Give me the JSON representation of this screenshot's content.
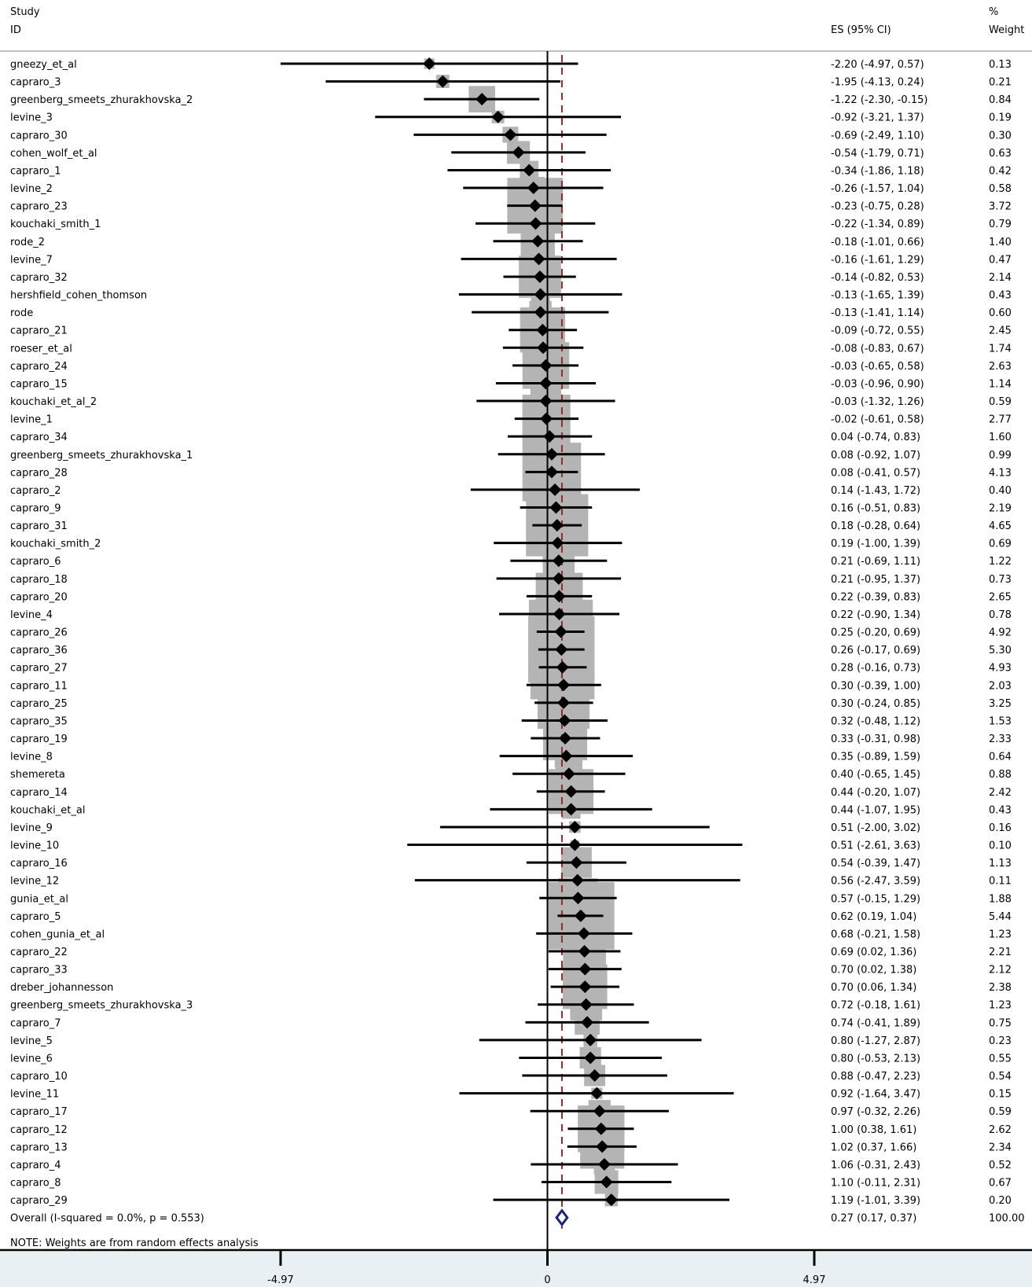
{
  "header": {
    "study_line1": "Study",
    "study_line2": "ID",
    "es_header": "ES (95% CI)",
    "weight_line1": "%",
    "weight_line2": "Weight"
  },
  "note": "NOTE: Weights are from random effects analysis",
  "chart_data": {
    "type": "forest",
    "x_axis": {
      "ticks": [
        -4.97,
        0,
        4.97
      ],
      "tick_labels": [
        "-4.97",
        "0",
        "4.97"
      ],
      "range": [
        -4.97,
        4.97
      ]
    },
    "colors": {
      "diamond": "#000000",
      "weight_box": "#b4b4b4",
      "overall_outline": "#1a237e",
      "reference_line": "#8b2c2c",
      "axis_band": "#e8f0f3"
    },
    "studies": [
      {
        "id": "gneezy_et_al",
        "es": -2.2,
        "lo": -4.97,
        "hi": 0.57,
        "ci_text": "-2.20 (-4.97, 0.57)",
        "weight": 0.13,
        "weight_text": "0.13"
      },
      {
        "id": "capraro_3",
        "es": -1.95,
        "lo": -4.13,
        "hi": 0.24,
        "ci_text": "-1.95 (-4.13, 0.24)",
        "weight": 0.21,
        "weight_text": "0.21"
      },
      {
        "id": "greenberg_smeets_zhurakhovska_2",
        "es": -1.22,
        "lo": -2.3,
        "hi": -0.15,
        "ci_text": "-1.22 (-2.30, -0.15)",
        "weight": 0.84,
        "weight_text": "0.84"
      },
      {
        "id": "levine_3",
        "es": -0.92,
        "lo": -3.21,
        "hi": 1.37,
        "ci_text": "-0.92 (-3.21, 1.37)",
        "weight": 0.19,
        "weight_text": "0.19"
      },
      {
        "id": "capraro_30",
        "es": -0.69,
        "lo": -2.49,
        "hi": 1.1,
        "ci_text": "-0.69 (-2.49, 1.10)",
        "weight": 0.3,
        "weight_text": "0.30"
      },
      {
        "id": "cohen_wolf_et_al",
        "es": -0.54,
        "lo": -1.79,
        "hi": 0.71,
        "ci_text": "-0.54 (-1.79, 0.71)",
        "weight": 0.63,
        "weight_text": "0.63"
      },
      {
        "id": "capraro_1",
        "es": -0.34,
        "lo": -1.86,
        "hi": 1.18,
        "ci_text": "-0.34 (-1.86, 1.18)",
        "weight": 0.42,
        "weight_text": "0.42"
      },
      {
        "id": "levine_2",
        "es": -0.26,
        "lo": -1.57,
        "hi": 1.04,
        "ci_text": "-0.26 (-1.57, 1.04)",
        "weight": 0.58,
        "weight_text": "0.58"
      },
      {
        "id": "capraro_23",
        "es": -0.23,
        "lo": -0.75,
        "hi": 0.28,
        "ci_text": "-0.23 (-0.75, 0.28)",
        "weight": 3.72,
        "weight_text": "3.72"
      },
      {
        "id": "kouchaki_smith_1",
        "es": -0.22,
        "lo": -1.34,
        "hi": 0.89,
        "ci_text": "-0.22 (-1.34, 0.89)",
        "weight": 0.79,
        "weight_text": "0.79"
      },
      {
        "id": "rode_2",
        "es": -0.18,
        "lo": -1.01,
        "hi": 0.66,
        "ci_text": "-0.18 (-1.01, 0.66)",
        "weight": 1.4,
        "weight_text": "1.40"
      },
      {
        "id": "levine_7",
        "es": -0.16,
        "lo": -1.61,
        "hi": 1.29,
        "ci_text": "-0.16 (-1.61, 1.29)",
        "weight": 0.47,
        "weight_text": "0.47"
      },
      {
        "id": "capraro_32",
        "es": -0.14,
        "lo": -0.82,
        "hi": 0.53,
        "ci_text": "-0.14 (-0.82, 0.53)",
        "weight": 2.14,
        "weight_text": "2.14"
      },
      {
        "id": "hershfield_cohen_thomson",
        "es": -0.13,
        "lo": -1.65,
        "hi": 1.39,
        "ci_text": "-0.13 (-1.65, 1.39)",
        "weight": 0.43,
        "weight_text": "0.43"
      },
      {
        "id": "rode",
        "es": -0.13,
        "lo": -1.41,
        "hi": 1.14,
        "ci_text": "-0.13 (-1.41, 1.14)",
        "weight": 0.6,
        "weight_text": "0.60"
      },
      {
        "id": "capraro_21",
        "es": -0.09,
        "lo": -0.72,
        "hi": 0.55,
        "ci_text": "-0.09 (-0.72, 0.55)",
        "weight": 2.45,
        "weight_text": "2.45"
      },
      {
        "id": "roeser_et_al",
        "es": -0.08,
        "lo": -0.83,
        "hi": 0.67,
        "ci_text": "-0.08 (-0.83, 0.67)",
        "weight": 1.74,
        "weight_text": "1.74"
      },
      {
        "id": "capraro_24",
        "es": -0.03,
        "lo": -0.65,
        "hi": 0.58,
        "ci_text": "-0.03 (-0.65, 0.58)",
        "weight": 2.63,
        "weight_text": "2.63"
      },
      {
        "id": "capraro_15",
        "es": -0.03,
        "lo": -0.96,
        "hi": 0.9,
        "ci_text": "-0.03 (-0.96, 0.90)",
        "weight": 1.14,
        "weight_text": "1.14"
      },
      {
        "id": "kouchaki_et_al_2",
        "es": -0.03,
        "lo": -1.32,
        "hi": 1.26,
        "ci_text": "-0.03 (-1.32, 1.26)",
        "weight": 0.59,
        "weight_text": "0.59"
      },
      {
        "id": "levine_1",
        "es": -0.02,
        "lo": -0.61,
        "hi": 0.58,
        "ci_text": "-0.02 (-0.61, 0.58)",
        "weight": 2.77,
        "weight_text": "2.77"
      },
      {
        "id": "capraro_34",
        "es": 0.04,
        "lo": -0.74,
        "hi": 0.83,
        "ci_text": "0.04 (-0.74, 0.83)",
        "weight": 1.6,
        "weight_text": "1.60"
      },
      {
        "id": "greenberg_smeets_zhurakhovska_1",
        "es": 0.08,
        "lo": -0.92,
        "hi": 1.07,
        "ci_text": "0.08 (-0.92, 1.07)",
        "weight": 0.99,
        "weight_text": "0.99"
      },
      {
        "id": "capraro_28",
        "es": 0.08,
        "lo": -0.41,
        "hi": 0.57,
        "ci_text": "0.08 (-0.41, 0.57)",
        "weight": 4.13,
        "weight_text": "4.13"
      },
      {
        "id": "capraro_2",
        "es": 0.14,
        "lo": -1.43,
        "hi": 1.72,
        "ci_text": "0.14 (-1.43, 1.72)",
        "weight": 0.4,
        "weight_text": "0.40"
      },
      {
        "id": "capraro_9",
        "es": 0.16,
        "lo": -0.51,
        "hi": 0.83,
        "ci_text": "0.16 (-0.51, 0.83)",
        "weight": 2.19,
        "weight_text": "2.19"
      },
      {
        "id": "capraro_31",
        "es": 0.18,
        "lo": -0.28,
        "hi": 0.64,
        "ci_text": "0.18 (-0.28, 0.64)",
        "weight": 4.65,
        "weight_text": "4.65"
      },
      {
        "id": "kouchaki_smith_2",
        "es": 0.19,
        "lo": -1.0,
        "hi": 1.39,
        "ci_text": "0.19 (-1.00, 1.39)",
        "weight": 0.69,
        "weight_text": "0.69"
      },
      {
        "id": "capraro_6",
        "es": 0.21,
        "lo": -0.69,
        "hi": 1.11,
        "ci_text": "0.21 (-0.69, 1.11)",
        "weight": 1.22,
        "weight_text": "1.22"
      },
      {
        "id": "capraro_18",
        "es": 0.21,
        "lo": -0.95,
        "hi": 1.37,
        "ci_text": "0.21 (-0.95, 1.37)",
        "weight": 0.73,
        "weight_text": "0.73"
      },
      {
        "id": "capraro_20",
        "es": 0.22,
        "lo": -0.39,
        "hi": 0.83,
        "ci_text": "0.22 (-0.39, 0.83)",
        "weight": 2.65,
        "weight_text": "2.65"
      },
      {
        "id": "levine_4",
        "es": 0.22,
        "lo": -0.9,
        "hi": 1.34,
        "ci_text": "0.22 (-0.90, 1.34)",
        "weight": 0.78,
        "weight_text": "0.78"
      },
      {
        "id": "capraro_26",
        "es": 0.25,
        "lo": -0.2,
        "hi": 0.69,
        "ci_text": "0.25 (-0.20, 0.69)",
        "weight": 4.92,
        "weight_text": "4.92"
      },
      {
        "id": "capraro_36",
        "es": 0.26,
        "lo": -0.17,
        "hi": 0.69,
        "ci_text": "0.26 (-0.17, 0.69)",
        "weight": 5.3,
        "weight_text": "5.30"
      },
      {
        "id": "capraro_27",
        "es": 0.28,
        "lo": -0.16,
        "hi": 0.73,
        "ci_text": "0.28 (-0.16, 0.73)",
        "weight": 4.93,
        "weight_text": "4.93"
      },
      {
        "id": "capraro_11",
        "es": 0.3,
        "lo": -0.39,
        "hi": 1.0,
        "ci_text": "0.30 (-0.39, 1.00)",
        "weight": 2.03,
        "weight_text": "2.03"
      },
      {
        "id": "capraro_25",
        "es": 0.3,
        "lo": -0.24,
        "hi": 0.85,
        "ci_text": "0.30 (-0.24, 0.85)",
        "weight": 3.25,
        "weight_text": "3.25"
      },
      {
        "id": "capraro_35",
        "es": 0.32,
        "lo": -0.48,
        "hi": 1.12,
        "ci_text": "0.32 (-0.48, 1.12)",
        "weight": 1.53,
        "weight_text": "1.53"
      },
      {
        "id": "capraro_19",
        "es": 0.33,
        "lo": -0.31,
        "hi": 0.98,
        "ci_text": "0.33 (-0.31, 0.98)",
        "weight": 2.33,
        "weight_text": "2.33"
      },
      {
        "id": "levine_8",
        "es": 0.35,
        "lo": -0.89,
        "hi": 1.59,
        "ci_text": "0.35 (-0.89, 1.59)",
        "weight": 0.64,
        "weight_text": "0.64"
      },
      {
        "id": "shemereta",
        "es": 0.4,
        "lo": -0.65,
        "hi": 1.45,
        "ci_text": "0.40 (-0.65, 1.45)",
        "weight": 0.88,
        "weight_text": "0.88"
      },
      {
        "id": "capraro_14",
        "es": 0.44,
        "lo": -0.2,
        "hi": 1.07,
        "ci_text": "0.44 (-0.20, 1.07)",
        "weight": 2.42,
        "weight_text": "2.42"
      },
      {
        "id": "kouchaki_et_al",
        "es": 0.44,
        "lo": -1.07,
        "hi": 1.95,
        "ci_text": "0.44 (-1.07, 1.95)",
        "weight": 0.43,
        "weight_text": "0.43"
      },
      {
        "id": "levine_9",
        "es": 0.51,
        "lo": -2.0,
        "hi": 3.02,
        "ci_text": "0.51 (-2.00, 3.02)",
        "weight": 0.16,
        "weight_text": "0.16"
      },
      {
        "id": "levine_10",
        "es": 0.51,
        "lo": -2.61,
        "hi": 3.63,
        "ci_text": "0.51 (-2.61, 3.63)",
        "weight": 0.1,
        "weight_text": "0.10"
      },
      {
        "id": "capraro_16",
        "es": 0.54,
        "lo": -0.39,
        "hi": 1.47,
        "ci_text": "0.54 (-0.39, 1.47)",
        "weight": 1.13,
        "weight_text": "1.13"
      },
      {
        "id": "levine_12",
        "es": 0.56,
        "lo": -2.47,
        "hi": 3.59,
        "ci_text": "0.56 (-2.47, 3.59)",
        "weight": 0.11,
        "weight_text": "0.11"
      },
      {
        "id": "gunia_et_al",
        "es": 0.57,
        "lo": -0.15,
        "hi": 1.29,
        "ci_text": "0.57 (-0.15, 1.29)",
        "weight": 1.88,
        "weight_text": "1.88"
      },
      {
        "id": "capraro_5",
        "es": 0.62,
        "lo": 0.19,
        "hi": 1.04,
        "ci_text": "0.62 (0.19, 1.04)",
        "weight": 5.44,
        "weight_text": "5.44"
      },
      {
        "id": "cohen_gunia_et_al",
        "es": 0.68,
        "lo": -0.21,
        "hi": 1.58,
        "ci_text": "0.68 (-0.21, 1.58)",
        "weight": 1.23,
        "weight_text": "1.23"
      },
      {
        "id": "capraro_22",
        "es": 0.69,
        "lo": 0.02,
        "hi": 1.36,
        "ci_text": "0.69 (0.02, 1.36)",
        "weight": 2.21,
        "weight_text": "2.21"
      },
      {
        "id": "capraro_33",
        "es": 0.7,
        "lo": 0.02,
        "hi": 1.38,
        "ci_text": "0.70 (0.02, 1.38)",
        "weight": 2.12,
        "weight_text": "2.12"
      },
      {
        "id": "dreber_johannesson",
        "es": 0.7,
        "lo": 0.06,
        "hi": 1.34,
        "ci_text": "0.70 (0.06, 1.34)",
        "weight": 2.38,
        "weight_text": "2.38"
      },
      {
        "id": "greenberg_smeets_zhurakhovska_3",
        "es": 0.72,
        "lo": -0.18,
        "hi": 1.61,
        "ci_text": "0.72 (-0.18, 1.61)",
        "weight": 1.23,
        "weight_text": "1.23"
      },
      {
        "id": "capraro_7",
        "es": 0.74,
        "lo": -0.41,
        "hi": 1.89,
        "ci_text": "0.74 (-0.41, 1.89)",
        "weight": 0.75,
        "weight_text": "0.75"
      },
      {
        "id": "levine_5",
        "es": 0.8,
        "lo": -1.27,
        "hi": 2.87,
        "ci_text": "0.80 (-1.27, 2.87)",
        "weight": 0.23,
        "weight_text": "0.23"
      },
      {
        "id": "levine_6",
        "es": 0.8,
        "lo": -0.53,
        "hi": 2.13,
        "ci_text": "0.80 (-0.53, 2.13)",
        "weight": 0.55,
        "weight_text": "0.55"
      },
      {
        "id": "capraro_10",
        "es": 0.88,
        "lo": -0.47,
        "hi": 2.23,
        "ci_text": "0.88 (-0.47, 2.23)",
        "weight": 0.54,
        "weight_text": "0.54"
      },
      {
        "id": "levine_11",
        "es": 0.92,
        "lo": -1.64,
        "hi": 3.47,
        "ci_text": "0.92 (-1.64, 3.47)",
        "weight": 0.15,
        "weight_text": "0.15"
      },
      {
        "id": "capraro_17",
        "es": 0.97,
        "lo": -0.32,
        "hi": 2.26,
        "ci_text": "0.97 (-0.32, 2.26)",
        "weight": 0.59,
        "weight_text": "0.59"
      },
      {
        "id": "capraro_12",
        "es": 1.0,
        "lo": 0.38,
        "hi": 1.61,
        "ci_text": "1.00 (0.38, 1.61)",
        "weight": 2.62,
        "weight_text": "2.62"
      },
      {
        "id": "capraro_13",
        "es": 1.02,
        "lo": 0.37,
        "hi": 1.66,
        "ci_text": "1.02 (0.37, 1.66)",
        "weight": 2.34,
        "weight_text": "2.34"
      },
      {
        "id": "capraro_4",
        "es": 1.06,
        "lo": -0.31,
        "hi": 2.43,
        "ci_text": "1.06 (-0.31, 2.43)",
        "weight": 0.52,
        "weight_text": "0.52"
      },
      {
        "id": "capraro_8",
        "es": 1.1,
        "lo": -0.11,
        "hi": 2.31,
        "ci_text": "1.10 (-0.11, 2.31)",
        "weight": 0.67,
        "weight_text": "0.67"
      },
      {
        "id": "capraro_29",
        "es": 1.19,
        "lo": -1.01,
        "hi": 3.39,
        "ci_text": "1.19 (-1.01, 3.39)",
        "weight": 0.2,
        "weight_text": "0.20"
      }
    ],
    "overall": {
      "label": "Overall  (I-squared = 0.0%, p = 0.553)",
      "es": 0.27,
      "lo": 0.17,
      "hi": 0.37,
      "ci_text": "0.27 (0.17, 0.37)",
      "weight_text": "100.00"
    }
  }
}
